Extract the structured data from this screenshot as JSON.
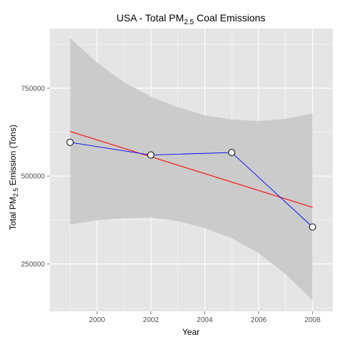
{
  "chart_data": {
    "type": "line",
    "title": {
      "prefix": "USA - Total PM",
      "subscript": "2.5",
      "suffix": " Coal Emissions"
    },
    "xlabel": "Year",
    "ylabel": {
      "prefix": "Total PM",
      "subscript": "2.5",
      "suffix": " Emission (Tons)"
    },
    "x": [
      1999,
      2002,
      2005,
      2008
    ],
    "series": [
      {
        "values": [
          596000,
          560000,
          567000,
          355000
        ],
        "color": "#0000ff",
        "markers": true
      }
    ],
    "trend": {
      "type": "linear",
      "start": [
        1999,
        627000
      ],
      "end": [
        2008,
        411000
      ],
      "color": "#ff0000"
    },
    "confidence_band": {
      "x": [
        1999,
        2000,
        2001,
        2002,
        2003,
        2004,
        2005,
        2006,
        2007,
        2008
      ],
      "upper": [
        893000,
        823000,
        767000,
        726000,
        696000,
        673000,
        661000,
        657000,
        663000,
        678000
      ],
      "lower": [
        362000,
        374000,
        380000,
        382000,
        372000,
        352000,
        323000,
        281000,
        221000,
        146000
      ],
      "color": "#c8c8c8"
    },
    "xlim": [
      1998.25,
      2008.75
    ],
    "ylim": [
      115000,
      920000
    ],
    "xticks": [
      2000,
      2002,
      2004,
      2006,
      2008
    ],
    "yticks": [
      250000,
      500000,
      750000
    ],
    "grid": true,
    "panel_color": "#e5e5e5",
    "grid_color": "#ffffff"
  }
}
